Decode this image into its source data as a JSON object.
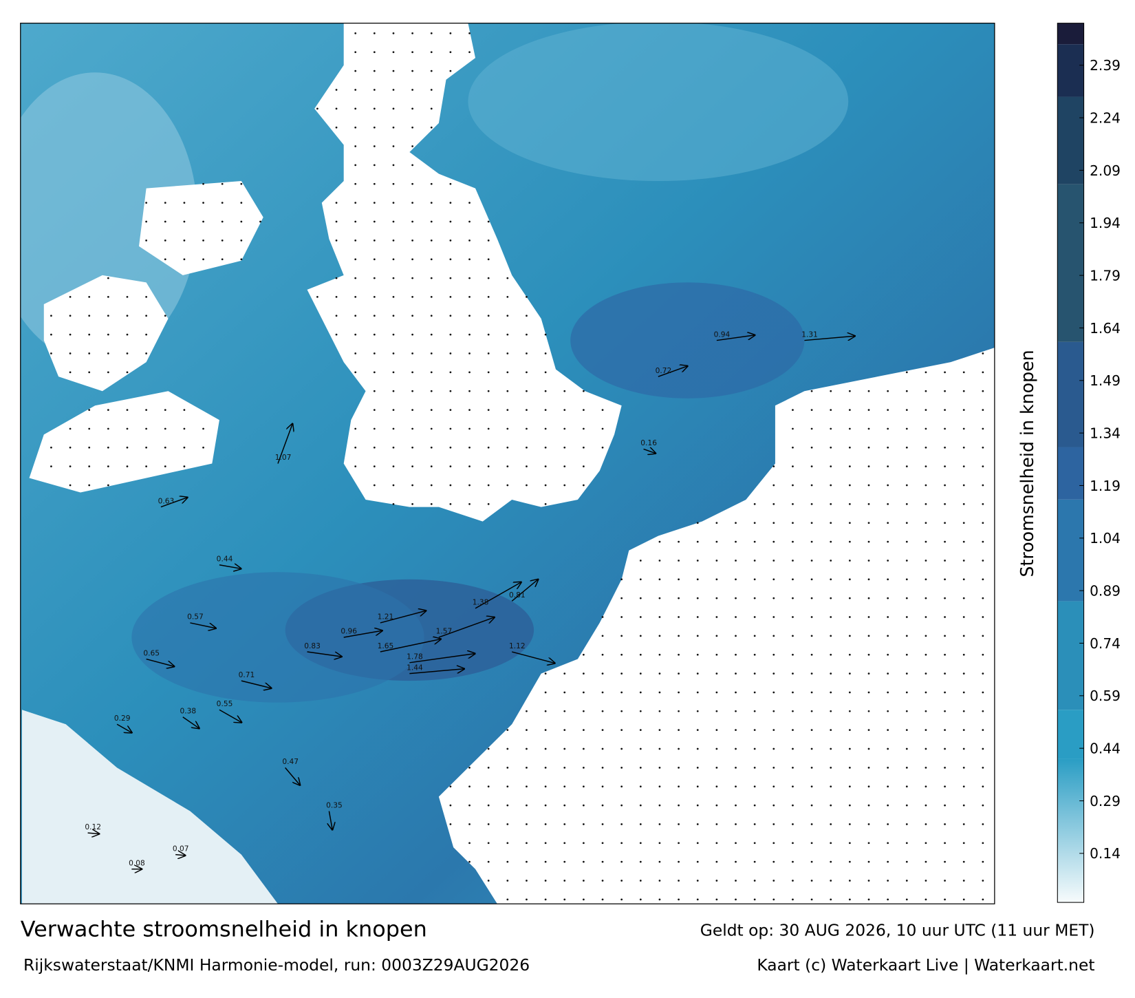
{
  "title": "Verwachte stroomsnelheid in knopen",
  "valid_time": "Geldt op: 30 AUG 2026, 10 uur UTC (11 uur MET)",
  "model_run": "Rijkswaterstaat/KNMI Harmonie-model, run: 0003Z29AUG2026",
  "credit": "Kaart (c) Waterkaart Live | Waterkaart.net",
  "colorbar": {
    "label": "Stroomsnelheid in knopen",
    "clim": [
      0,
      2.51
    ],
    "ticks": [
      0.14,
      0.29,
      0.44,
      0.59,
      0.74,
      0.89,
      1.04,
      1.19,
      1.34,
      1.49,
      1.64,
      1.79,
      1.94,
      2.09,
      2.24,
      2.39
    ],
    "stops": [
      {
        "value": 0,
        "color": "#f7fbfc"
      },
      {
        "value": 0.41,
        "color": "#2a9dc4"
      },
      {
        "value": 0.55,
        "color": "#2b8fb9"
      },
      {
        "value": 0.86,
        "color": "#2c77ad"
      },
      {
        "value": 1.15,
        "color": "#2d64a0"
      },
      {
        "value": 1.3,
        "color": "#2a5a8f"
      },
      {
        "value": 1.6,
        "color": "#27546f"
      },
      {
        "value": 2.05,
        "color": "#1f4463"
      },
      {
        "value": 2.3,
        "color": "#1b2e52"
      },
      {
        "value": 2.45,
        "color": "#1a1c3a"
      }
    ]
  },
  "current_samples": [
    0.44,
    0.57,
    0.65,
    0.71,
    0.83,
    0.96,
    1.07,
    1.21,
    1.44,
    1.57,
    1.65,
    1.78,
    1.38,
    1.12,
    0.94,
    1.31,
    0.72,
    0.55,
    0.38,
    0.29,
    0.47,
    0.35,
    0.63,
    0.81,
    0.16,
    0.12,
    0.08,
    0.07
  ]
}
